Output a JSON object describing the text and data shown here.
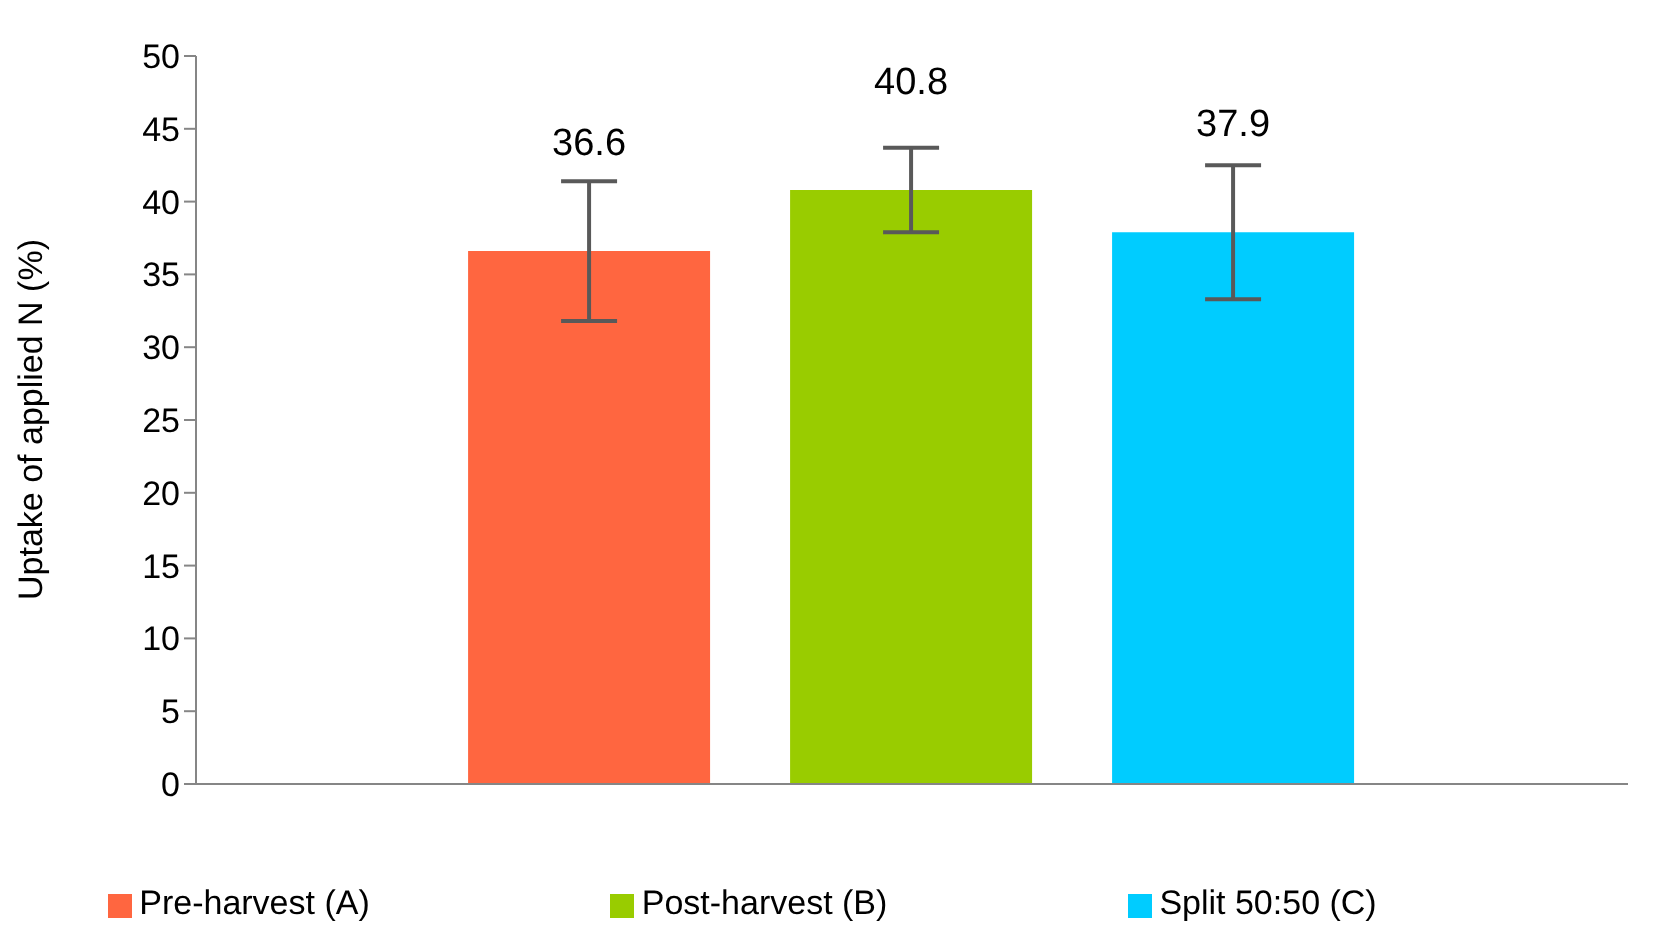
{
  "chart_data": {
    "type": "bar",
    "ylabel": "Uptake of applied N (%)",
    "categories": [
      null
    ],
    "series": [
      {
        "name": "Pre-harvest (A)",
        "color": "#ff6640",
        "values": [
          36.6
        ],
        "errors": [
          4.8
        ]
      },
      {
        "name": "Post-harvest (B)",
        "color": "#99cc00",
        "values": [
          40.8
        ],
        "errors": [
          2.9
        ]
      },
      {
        "name": "Split 50:50 (C)",
        "color": "#00ccff",
        "values": [
          37.9
        ],
        "errors": [
          4.6
        ]
      }
    ],
    "ylim": [
      0,
      50
    ],
    "yticks": [
      0,
      5,
      10,
      15,
      20,
      25,
      30,
      35,
      40,
      45,
      50
    ],
    "data_labels": true,
    "legend": "bottom",
    "grid": false
  }
}
